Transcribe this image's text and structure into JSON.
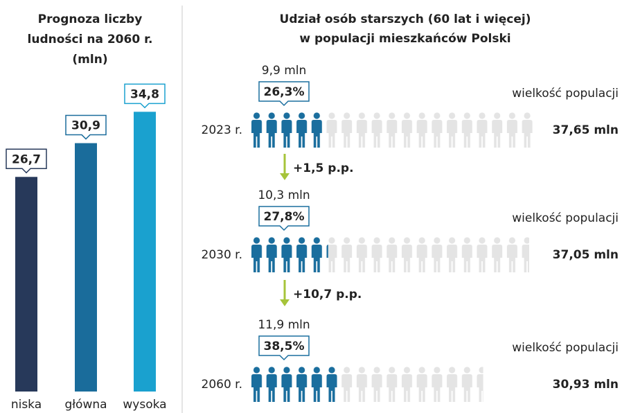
{
  "chart_data": [
    {
      "type": "bar",
      "title_lines": [
        "Prognoza liczby",
        "ludności na 2060 r.",
        "(mln)"
      ],
      "categories": [
        "niska",
        "główna",
        "wysoka"
      ],
      "values": [
        26.7,
        30.9,
        34.8
      ],
      "value_labels": [
        "26,7",
        "30,9",
        "34,8"
      ],
      "colors": [
        "#27395a",
        "#1a6c9b",
        "#1aa1cf"
      ]
    },
    {
      "type": "pictogram",
      "title_lines": [
        "Udział osób starszych (60 lat i więcej)",
        "w populacji mieszkańców Polski"
      ],
      "population_caption": "wielkość populacji",
      "color": "#1a6e9e",
      "rest_color": "#e4e4e4",
      "change_color": "#a6c43a",
      "rows": [
        {
          "year": "2023 r.",
          "elderly": 9.9,
          "elderly_label": "9,9 mln",
          "share": {
            "value": 26.3,
            "label": "26,3%"
          },
          "population": 37.65,
          "population_label": "37,65 mln"
        },
        {
          "year": "2030 r.",
          "elderly": 10.3,
          "elderly_label": "10,3 mln",
          "share": {
            "value": 27.8,
            "label": "27,8%"
          },
          "population": 37.05,
          "population_label": "37,05 mln"
        },
        {
          "year": "2060 r.",
          "elderly": 11.9,
          "elderly_label": "11,9 mln",
          "share": {
            "value": 38.5,
            "label": "38,5%"
          },
          "population": 30.93,
          "population_label": "30,93 mln"
        }
      ],
      "changes": [
        "+1,5 p.p.",
        "+10,7 p.p."
      ]
    }
  ]
}
